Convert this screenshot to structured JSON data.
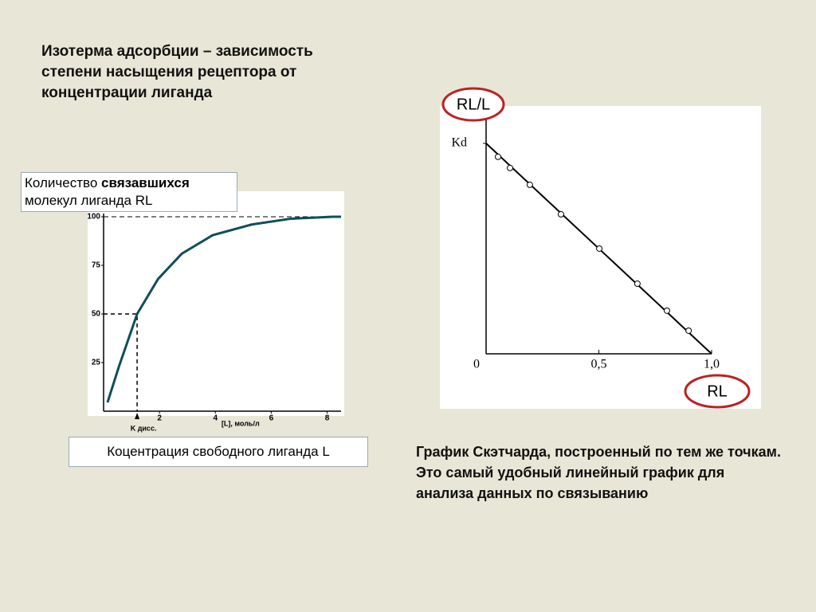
{
  "slide_title": "Изотерма адсорбции – зависимость степени насыщения рецептора от концентрации лиганда",
  "y_caption": [
    "Количество ",
    "связавшихся",
    "молекул лиганда RL"
  ],
  "x_caption": "Коцентрация свободного лиганда L",
  "notes": [
    "График Скэтчарда, построенный по тем же точкам.",
    "Это самый удобный линейный график для анализа данных по связыванию"
  ],
  "chart_data": [
    {
      "type": "line",
      "color": "#0f4f5a",
      "x": [
        0.14,
        0.55,
        1.2,
        1.95,
        2.8,
        3.9,
        5.3,
        6.7,
        8.2,
        8.5
      ],
      "values": [
        4.5,
        23,
        50,
        68,
        81,
        90.5,
        96,
        99,
        100,
        100
      ],
      "xlim": [
        0,
        8.5
      ],
      "ylim": [
        0,
        100
      ],
      "xticks": [
        2,
        4,
        6,
        8
      ],
      "yticks": [
        25,
        50,
        75,
        100
      ],
      "x_label": "[L], моль/л",
      "marker": {
        "x": 1.2,
        "y": 50,
        "label": "K дисс."
      },
      "asymptote": 100
    },
    {
      "type": "scatter",
      "color": "#000000",
      "x": [
        0.053,
        0.106,
        0.194,
        0.332,
        0.502,
        0.671,
        0.802,
        0.898
      ],
      "values": [
        0.936,
        0.883,
        0.803,
        0.663,
        0.5,
        0.333,
        0.205,
        0.11
      ],
      "fit": {
        "x": [
          0,
          1
        ],
        "values": [
          1,
          0
        ]
      },
      "xlim": [
        0,
        1
      ],
      "ylim": [
        0,
        1.17
      ],
      "xticks": [
        0,
        {
          "value": 0.5,
          "label": "0,5"
        },
        {
          "value": 1,
          "label": "1,0"
        }
      ],
      "yticks": [
        {
          "value": 1,
          "label": "Kd"
        }
      ],
      "x_label": "RL",
      "y_label": "RL/L"
    }
  ]
}
